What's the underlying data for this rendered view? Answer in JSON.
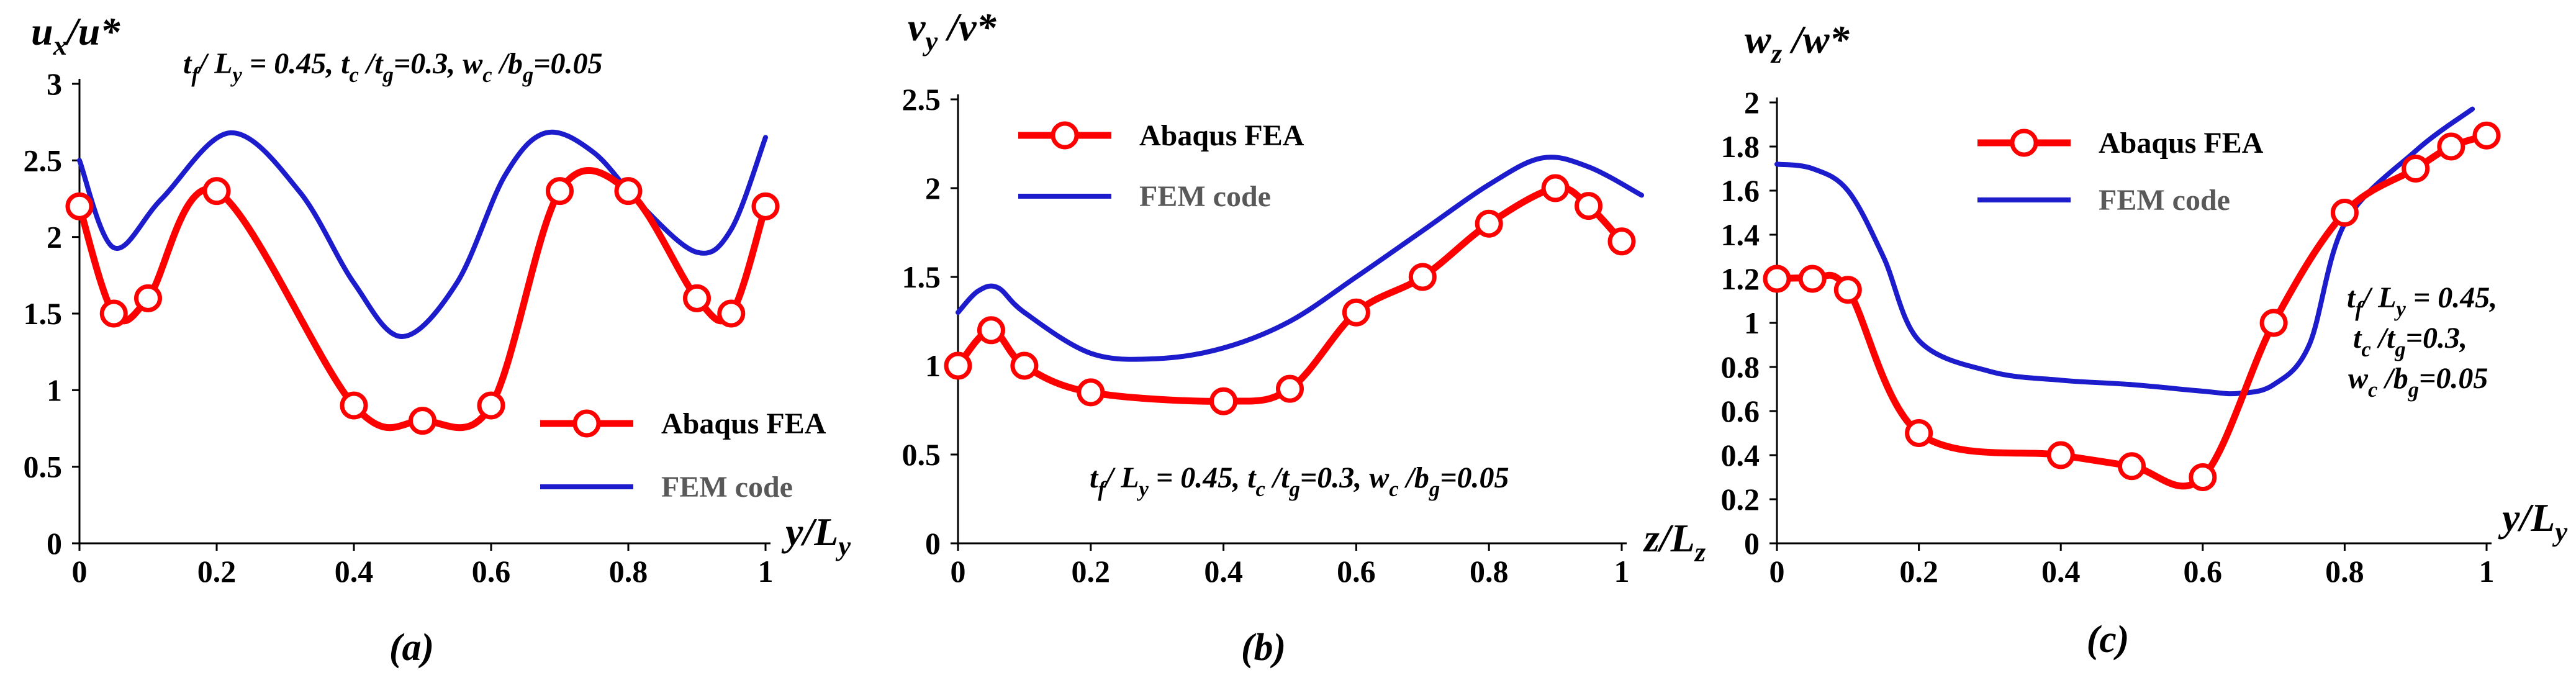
{
  "figure": {
    "colors": {
      "abaqus": "#ff0000",
      "fem": "#1c1ccc",
      "axis": "#000000"
    }
  },
  "chart_data": [
    {
      "id": "a",
      "type": "line",
      "subplot_label": "(a)",
      "ylabel": {
        "main": "u",
        "sub": "x",
        "rest": "/u*"
      },
      "xlabel": {
        "main": "y/L",
        "sub": "y"
      },
      "annotation": [
        {
          "main": "t",
          "sub": "f"
        },
        {
          "main": "/ L",
          "sub": "y"
        },
        {
          "main": " = 0.45,  t",
          "sub": "c"
        },
        {
          "main": " /t",
          "sub": "g"
        },
        {
          "main": "=0.3,  w",
          "sub": "c"
        },
        {
          "main": " /b",
          "sub": "g"
        },
        {
          "main": "=0.05",
          "sub": ""
        }
      ],
      "xlim": [
        0,
        1
      ],
      "ylim": [
        0,
        3
      ],
      "xticks": [
        "0",
        "0.2",
        "0.4",
        "0.6",
        "0.8",
        "1"
      ],
      "yticks": [
        "0",
        "0.5",
        "1",
        "1.5",
        "2",
        "2.5",
        "3"
      ],
      "legend": {
        "position": "bottom-right",
        "order": [
          "abaqus",
          "fem"
        ]
      },
      "series": [
        {
          "key": "abaqus",
          "name": "Abaqus FEA",
          "marker": "circle",
          "x": [
            0,
            0.05,
            0.1,
            0.2,
            0.4,
            0.5,
            0.6,
            0.7,
            0.8,
            0.9,
            0.95,
            1
          ],
          "y": [
            2.2,
            1.5,
            1.6,
            2.3,
            0.9,
            0.8,
            0.9,
            2.3,
            2.3,
            1.6,
            1.5,
            2.2
          ]
        },
        {
          "key": "fem",
          "name": "FEM code",
          "marker": "none",
          "x": [
            0,
            0.05,
            0.12,
            0.22,
            0.32,
            0.4,
            0.47,
            0.55,
            0.62,
            0.68,
            0.75,
            0.82,
            0.9,
            0.95,
            1
          ],
          "y": [
            2.5,
            1.93,
            2.25,
            2.68,
            2.3,
            1.7,
            1.35,
            1.7,
            2.4,
            2.68,
            2.55,
            2.2,
            1.9,
            2.05,
            2.65
          ]
        }
      ]
    },
    {
      "id": "b",
      "type": "line",
      "subplot_label": "(b)",
      "ylabel": {
        "main": "v",
        "sub": "y",
        "rest": " /v*"
      },
      "xlabel": {
        "main": "z/L",
        "sub": "z"
      },
      "annotation": [
        {
          "main": "t",
          "sub": "f"
        },
        {
          "main": "/ L",
          "sub": "y"
        },
        {
          "main": " = 0.45,  t",
          "sub": "c"
        },
        {
          "main": " /t",
          "sub": "g"
        },
        {
          "main": "=0.3,  w",
          "sub": "c"
        },
        {
          "main": " /b",
          "sub": "g"
        },
        {
          "main": "=0.05",
          "sub": ""
        }
      ],
      "xlim": [
        0,
        1
      ],
      "ylim": [
        0,
        2.5
      ],
      "xticks": [
        "0",
        "0.2",
        "0.4",
        "0.6",
        "0.8",
        "1"
      ],
      "yticks": [
        "0",
        "0.5",
        "1",
        "1.5",
        "2",
        "2.5"
      ],
      "legend": {
        "position": "top-left",
        "order": [
          "abaqus",
          "fem"
        ]
      },
      "series": [
        {
          "key": "abaqus",
          "name": "Abaqus FEA",
          "marker": "circle",
          "x": [
            0,
            0.05,
            0.1,
            0.2,
            0.4,
            0.5,
            0.6,
            0.7,
            0.8,
            0.9,
            0.95,
            1
          ],
          "y": [
            1.0,
            1.2,
            1.0,
            0.85,
            0.8,
            0.87,
            1.3,
            1.5,
            1.8,
            2.0,
            1.9,
            1.7
          ]
        },
        {
          "key": "fem",
          "name": "FEM code",
          "marker": "none",
          "x": [
            0,
            0.03,
            0.06,
            0.1,
            0.2,
            0.3,
            0.4,
            0.5,
            0.6,
            0.7,
            0.8,
            0.88,
            0.95,
            1.03
          ],
          "y": [
            1.3,
            1.42,
            1.44,
            1.3,
            1.07,
            1.04,
            1.1,
            1.25,
            1.5,
            1.76,
            2.02,
            2.17,
            2.12,
            1.96
          ]
        }
      ]
    },
    {
      "id": "c",
      "type": "line",
      "subplot_label": "(c)",
      "ylabel": {
        "main": "w",
        "sub": "z",
        "rest": " /w*"
      },
      "xlabel": {
        "main": "y/L",
        "sub": "y"
      },
      "annotation_lines": [
        [
          {
            "main": "t",
            "sub": "f"
          },
          {
            "main": "/ L",
            "sub": "y"
          },
          {
            "main": " = 0.45,",
            "sub": ""
          }
        ],
        [
          {
            "main": "t",
            "sub": "c"
          },
          {
            "main": " /t",
            "sub": "g"
          },
          {
            "main": "=0.3,",
            "sub": ""
          }
        ],
        [
          {
            "main": "w",
            "sub": "c"
          },
          {
            "main": " /b",
            "sub": "g"
          },
          {
            "main": "=0.05",
            "sub": ""
          }
        ]
      ],
      "xlim": [
        0,
        1
      ],
      "ylim": [
        0,
        2
      ],
      "xticks": [
        "0",
        "0.2",
        "0.4",
        "0.6",
        "0.8",
        "1"
      ],
      "yticks": [
        "0",
        "0.2",
        "0.4",
        "0.6",
        "0.8",
        "1",
        "1.2",
        "1.4",
        "1.6",
        "1.8",
        "2"
      ],
      "legend": {
        "position": "top-left",
        "order": [
          "abaqus",
          "fem"
        ]
      },
      "series": [
        {
          "key": "abaqus",
          "name": "Abaqus FEA",
          "marker": "circle",
          "x": [
            0,
            0.05,
            0.1,
            0.2,
            0.4,
            0.5,
            0.6,
            0.7,
            0.8,
            0.9,
            0.95,
            1
          ],
          "y": [
            1.2,
            1.2,
            1.15,
            0.5,
            0.4,
            0.35,
            0.3,
            1.0,
            1.5,
            1.7,
            1.8,
            1.85
          ]
        },
        {
          "key": "fem",
          "name": "FEM code",
          "marker": "none",
          "x": [
            0,
            0.05,
            0.1,
            0.15,
            0.2,
            0.3,
            0.4,
            0.5,
            0.6,
            0.65,
            0.7,
            0.75,
            0.8,
            0.9,
            0.98
          ],
          "y": [
            1.72,
            1.7,
            1.6,
            1.3,
            0.92,
            0.78,
            0.74,
            0.72,
            0.69,
            0.68,
            0.72,
            0.9,
            1.45,
            1.78,
            1.97
          ]
        }
      ]
    }
  ]
}
